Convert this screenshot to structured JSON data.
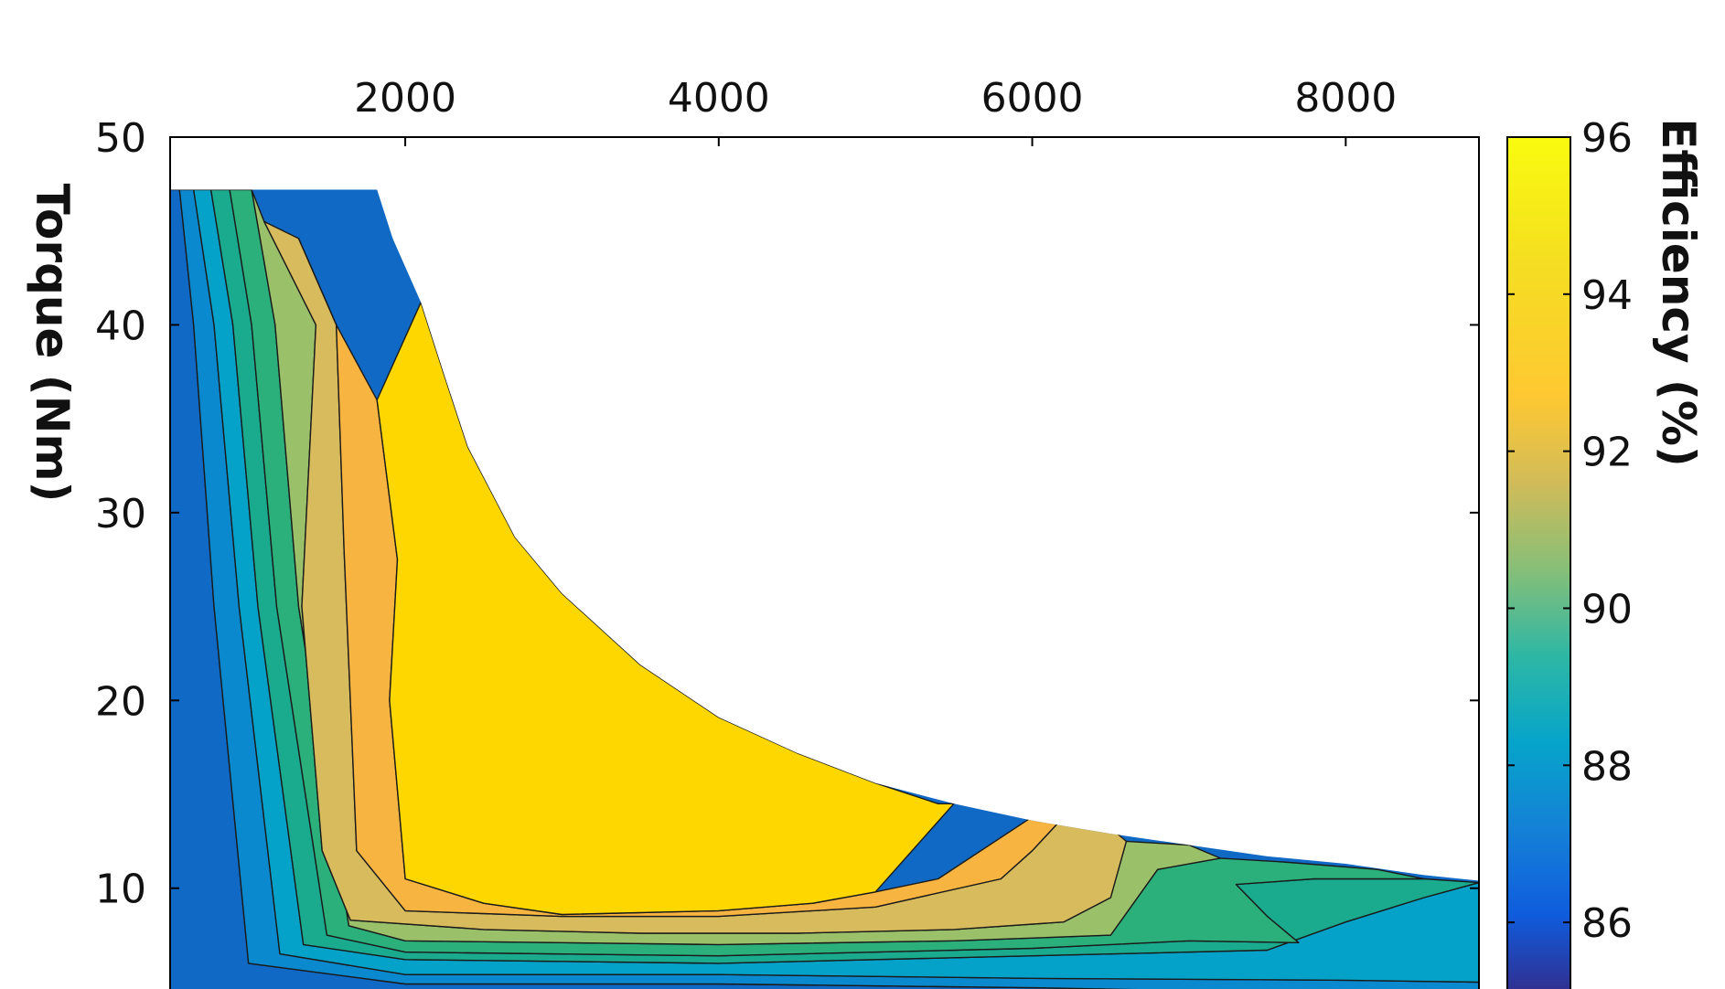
{
  "chart_data": {
    "type": "heatmap",
    "subtype": "filled-contour",
    "title": "",
    "xlabel": "",
    "ylabel": "Torque (Nm)",
    "colorbar_label": "Efficiency (%)",
    "x_axis_position": "top",
    "xlim": [
      500,
      8850
    ],
    "ylim": [
      4,
      50
    ],
    "x_ticks": [
      2000,
      4000,
      6000,
      8000
    ],
    "y_ticks": [
      10,
      20,
      30,
      40,
      50
    ],
    "grid": false,
    "legend": "colorbar right",
    "colorbar": {
      "range": [
        85,
        96
      ],
      "ticks": [
        86,
        88,
        90,
        92,
        94,
        96
      ],
      "colormap": "parula"
    },
    "max_torque_envelope": {
      "x": [
        500,
        1820,
        1920,
        2100,
        2250,
        2400,
        2700,
        3000,
        3500,
        4000,
        4500,
        5000,
        5500,
        6000,
        6500,
        7000,
        7500,
        8000,
        8500,
        8850
      ],
      "y": [
        47.2,
        47.2,
        44.6,
        41.2,
        37.3,
        33.5,
        28.7,
        25.7,
        21.9,
        19.1,
        17.2,
        15.6,
        14.5,
        13.6,
        12.9,
        12.3,
        11.7,
        11.3,
        10.7,
        10.4
      ]
    },
    "efficiency_regions": [
      {
        "level": 86.5,
        "x": [
          500,
          560,
          650,
          780,
          1000,
          2000,
          4000,
          6000,
          8000,
          8850,
          8850,
          500
        ],
        "y": [
          47.2,
          47.2,
          40,
          25,
          6,
          4.9,
          4.9,
          4.7,
          4.4,
          4.3,
          4,
          4
        ]
      },
      {
        "level": 88.0,
        "x": [
          560,
          650,
          780,
          940,
          1200,
          2000,
          4000,
          6000,
          8000,
          8850,
          8850,
          8000,
          6000,
          4000,
          2000,
          1000,
          780,
          650
        ],
        "y": [
          47.2,
          47.2,
          40,
          25,
          6.5,
          5.4,
          5.4,
          5.2,
          5.1,
          5,
          4.3,
          4.4,
          4.7,
          4.9,
          4.9,
          6,
          25,
          40
        ]
      },
      {
        "level": 89.0,
        "x": [
          650,
          760,
          900,
          1060,
          1350,
          2000,
          4000,
          6000,
          7500,
          8000,
          8500,
          8850,
          8850,
          8000,
          6000,
          4000,
          2000,
          1200,
          940,
          780
        ],
        "y": [
          47.2,
          47.2,
          40,
          25,
          7,
          6.2,
          6,
          6.4,
          6.7,
          8.2,
          9.5,
          10.3,
          5,
          5.1,
          5.2,
          5.4,
          5.4,
          6.5,
          25,
          40
        ]
      },
      {
        "level": 90.0,
        "x": [
          760,
          880,
          1020,
          1180,
          1500,
          2000,
          4000,
          6000,
          7000,
          7700,
          7500,
          7300,
          7800,
          8500,
          8850,
          8500,
          8000,
          7500,
          6000,
          4000,
          2000,
          1350,
          1060,
          900
        ],
        "y": [
          47.2,
          47.2,
          40,
          25,
          7.5,
          6.6,
          6.4,
          6.8,
          7.2,
          7.1,
          8.5,
          10.2,
          10.5,
          10.5,
          10.3,
          9.5,
          8.2,
          6.7,
          6.4,
          6,
          6.2,
          7,
          25,
          40
        ]
      },
      {
        "level": 91.0,
        "x": [
          880,
          1020,
          1170,
          1320,
          1640,
          2000,
          4000,
          5500,
          6500,
          6800,
          7200,
          7600,
          8200,
          8500,
          7800,
          7300,
          7500,
          7700,
          7000,
          6000,
          4000,
          2000,
          1500,
          1180,
          1020
        ],
        "y": [
          47.2,
          47.2,
          40,
          25,
          8,
          7.2,
          7,
          7.2,
          7.5,
          11,
          11.6,
          11.4,
          11,
          10.5,
          10.5,
          10.2,
          8.5,
          7.1,
          7.2,
          6.8,
          6.4,
          6.6,
          7.5,
          25,
          40
        ]
      },
      {
        "level": 92.0,
        "x": [
          1020,
          1100,
          1430,
          1340,
          1470,
          1650,
          2500,
          3500,
          4500,
          5500,
          6200,
          6500,
          6600,
          7000,
          7200,
          6800,
          6500,
          5500,
          4000,
          2000,
          1640,
          1320,
          1170
        ],
        "y": [
          47.2,
          45.5,
          40,
          25,
          12,
          8.3,
          7.8,
          7.6,
          7.6,
          7.8,
          8.2,
          9.5,
          12.5,
          12.3,
          11.6,
          11,
          7.5,
          7.2,
          7,
          7.2,
          8,
          25,
          40
        ]
      },
      {
        "level": 93.0,
        "x": [
          1100,
          1320,
          1560,
          1610,
          1690,
          2000,
          3000,
          4000,
          5000,
          5800,
          6000,
          6200,
          6500,
          6600,
          6500,
          6200,
          5500,
          4500,
          3500,
          2500,
          1650,
          1470,
          1340,
          1430
        ],
        "y": [
          45.5,
          44.6,
          40,
          28,
          12,
          8.8,
          8.5,
          8.5,
          9,
          10.5,
          12,
          13.8,
          13.2,
          12.5,
          9.5,
          8.2,
          7.8,
          7.6,
          7.6,
          7.8,
          8.3,
          12,
          25,
          40
        ]
      },
      {
        "level": 94.0,
        "x": [
          1320,
          1560,
          1820,
          1950,
          1900,
          2000,
          2500,
          3000,
          4000,
          4600,
          5000,
          5400,
          6000,
          6200,
          6000,
          5800,
          5000,
          4000,
          3000,
          2000,
          1690,
          1610,
          1560
        ],
        "y": [
          44.6,
          40,
          36,
          27.5,
          20,
          10.5,
          9.2,
          8.6,
          8.8,
          9.2,
          9.8,
          10.5,
          13.8,
          13.8,
          12,
          10.5,
          9,
          8.5,
          8.5,
          8.8,
          12,
          28,
          40
        ]
      },
      {
        "level": 95.0,
        "x": [
          1820,
          2100,
          2250,
          2400,
          2700,
          3000,
          3500,
          4000,
          4500,
          5000,
          5400,
          5500,
          5000,
          4600,
          4000,
          3000,
          2500,
          2000,
          1900,
          1950,
          1820,
          1820
        ],
        "y": [
          36,
          41.2,
          37.3,
          33.5,
          28.7,
          25.7,
          21.9,
          19.1,
          17.2,
          15.6,
          14.5,
          14.5,
          9.8,
          9.2,
          8.8,
          8.6,
          9.2,
          10.5,
          20,
          27.5,
          36,
          36
        ]
      }
    ]
  }
}
